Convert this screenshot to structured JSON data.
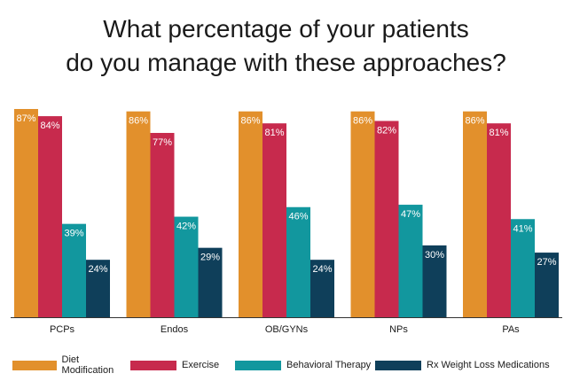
{
  "title": {
    "line1": "What percentage of your patients",
    "line2": "do you manage with these approaches?"
  },
  "colors": {
    "diet": "#e2902c",
    "exercise": "#c72a4d",
    "behavioral": "#12979e",
    "rx": "#0f3f5a",
    "axis": "#333333"
  },
  "chart_data": {
    "type": "bar",
    "title": "What percentage of your patients do you manage with these approaches?",
    "categories": [
      "PCPs",
      "Endos",
      "OB/GYNs",
      "NPs",
      "PAs"
    ],
    "series": [
      {
        "name": "Diet Modification",
        "values": [
          87,
          86,
          86,
          86,
          86
        ],
        "labels": [
          "87%",
          "86%",
          "86%",
          "86%",
          "86%"
        ]
      },
      {
        "name": "Exercise",
        "values": [
          84,
          77,
          81,
          82,
          81
        ],
        "labels": [
          "84%",
          "77%",
          "81%",
          "82%",
          "81%"
        ]
      },
      {
        "name": "Behavioral Therapy",
        "values": [
          39,
          42,
          46,
          47,
          41
        ],
        "labels": [
          "39%",
          "42%",
          "46%",
          "47%",
          "41%"
        ]
      },
      {
        "name": "Rx Weight Loss Medications",
        "values": [
          24,
          29,
          24,
          30,
          27
        ],
        "labels": [
          "24%",
          "29%",
          "24%",
          "30%",
          "27%"
        ]
      }
    ],
    "ylim": [
      0,
      87
    ],
    "xlabel": "",
    "ylabel": "",
    "grid": false,
    "legend": "bottom"
  }
}
